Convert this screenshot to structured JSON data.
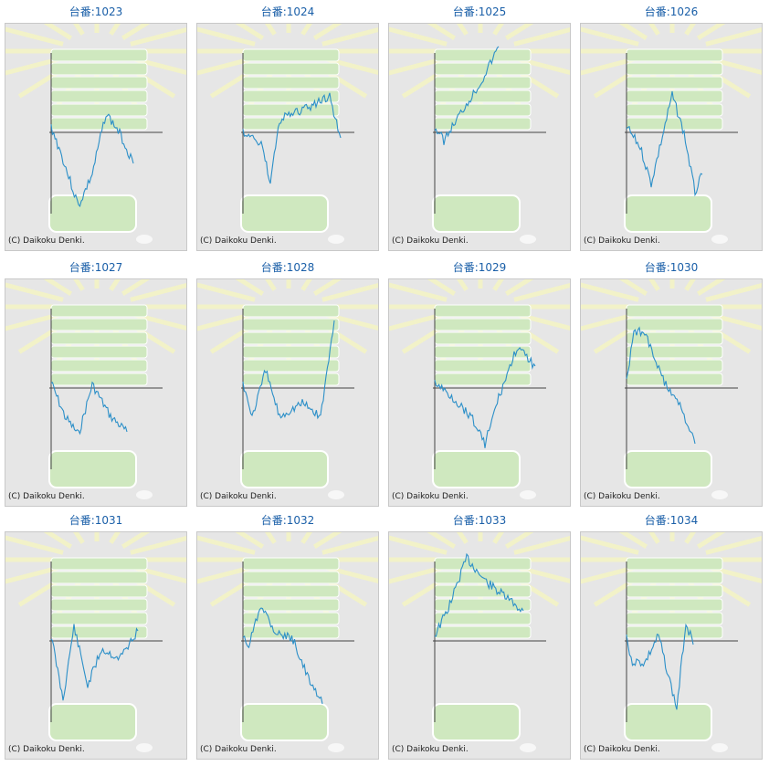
{
  "machines": [
    {
      "label": "台番:1023",
      "copyright": "(C) Daikoku Denki."
    },
    {
      "label": "台番:1024",
      "copyright": "(C) Daikoku Denki."
    },
    {
      "label": "台番:1025",
      "copyright": "(C) Daikoku Denki."
    },
    {
      "label": "台番:1026",
      "copyright": "(C) Daikoku Denki."
    },
    {
      "label": "台番:1027",
      "copyright": "(C) Daikoku Denki."
    },
    {
      "label": "台番:1028",
      "copyright": "(C) Daikoku Denki."
    },
    {
      "label": "台番:1029",
      "copyright": "(C) Daikoku Denki."
    },
    {
      "label": "台番:1030",
      "copyright": "(C) Daikoku Denki."
    },
    {
      "label": "台番:1031",
      "copyright": "(C) Daikoku Denki."
    },
    {
      "label": "台番:1032",
      "copyright": "(C) Daikoku Denki."
    },
    {
      "label": "台番:1033",
      "copyright": "(C) Daikoku Denki."
    },
    {
      "label": "台番:1034",
      "copyright": "(C) Daikoku Denki."
    }
  ],
  "colors": {
    "title": "#1a5fa8",
    "line": "#2b8fc8",
    "axis": "#444444",
    "panel": "#e6e6e6",
    "watermark": "#cfe8bf"
  },
  "icons": {
    "background": "pachinko-machine-watermark"
  }
}
